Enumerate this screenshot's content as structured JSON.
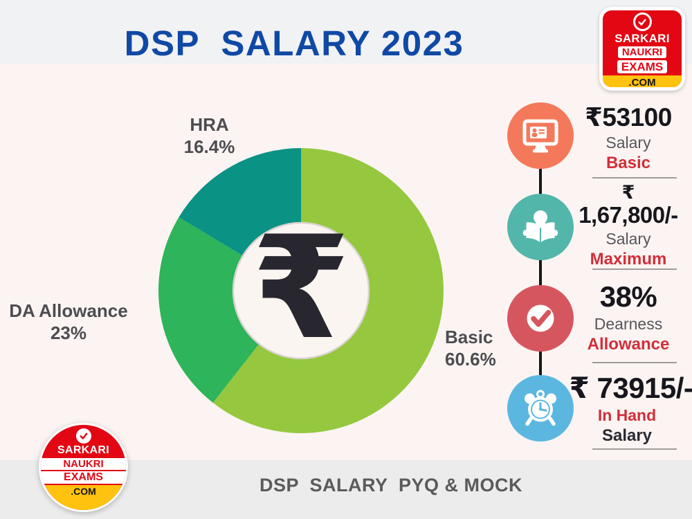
{
  "title": "DSP  SALARY 2023",
  "footer": "DSP  SALARY  PYQ & MOCK",
  "brand": {
    "sarkari": "SARKARI",
    "naukri": "NAUKRI",
    "exams": "EXAMS",
    "com": ".COM"
  },
  "chart_data": {
    "type": "pie",
    "title": "DSP Salary 2023 composition",
    "donut": true,
    "units": "%",
    "start_angle_deg": -90,
    "direction": "clockwise",
    "center_symbol": "₹",
    "slices": [
      {
        "label": "Basic",
        "value": 60.6,
        "display": "60.6%",
        "color": "#95C83E"
      },
      {
        "label": "DA Allowance",
        "value": 23,
        "display": "23%",
        "color": "#2EB45A"
      },
      {
        "label": "HRA",
        "value": 16.4,
        "display": "16.4%",
        "color": "#0A9285"
      }
    ],
    "center_fill": "#FBF5F2",
    "center_stroke": "#D9D2D0"
  },
  "timeline": {
    "items": [
      {
        "icon": "monitor-id-card-icon",
        "color": "#F4795B",
        "value": "₹53100",
        "sub1": "Salary",
        "sub2": "Basic",
        "accent": "sub2"
      },
      {
        "icon": "person-reading-icon",
        "color": "#52B6AB",
        "value_prefix": "₹",
        "value": "1,67,800/-",
        "sub1": "Salary",
        "sub2": "Maximum",
        "accent": "sub2"
      },
      {
        "icon": "check-badge-icon",
        "color": "#D6565F",
        "value": "38%",
        "sub1": "Dearness",
        "sub2": "Allowance",
        "accent": "sub2"
      },
      {
        "icon": "alarm-clock-icon",
        "color": "#5CB7E0",
        "value": "₹ 73915/-",
        "sub1": "In Hand",
        "sub2": "Salary",
        "accent": "sub1"
      }
    ]
  }
}
